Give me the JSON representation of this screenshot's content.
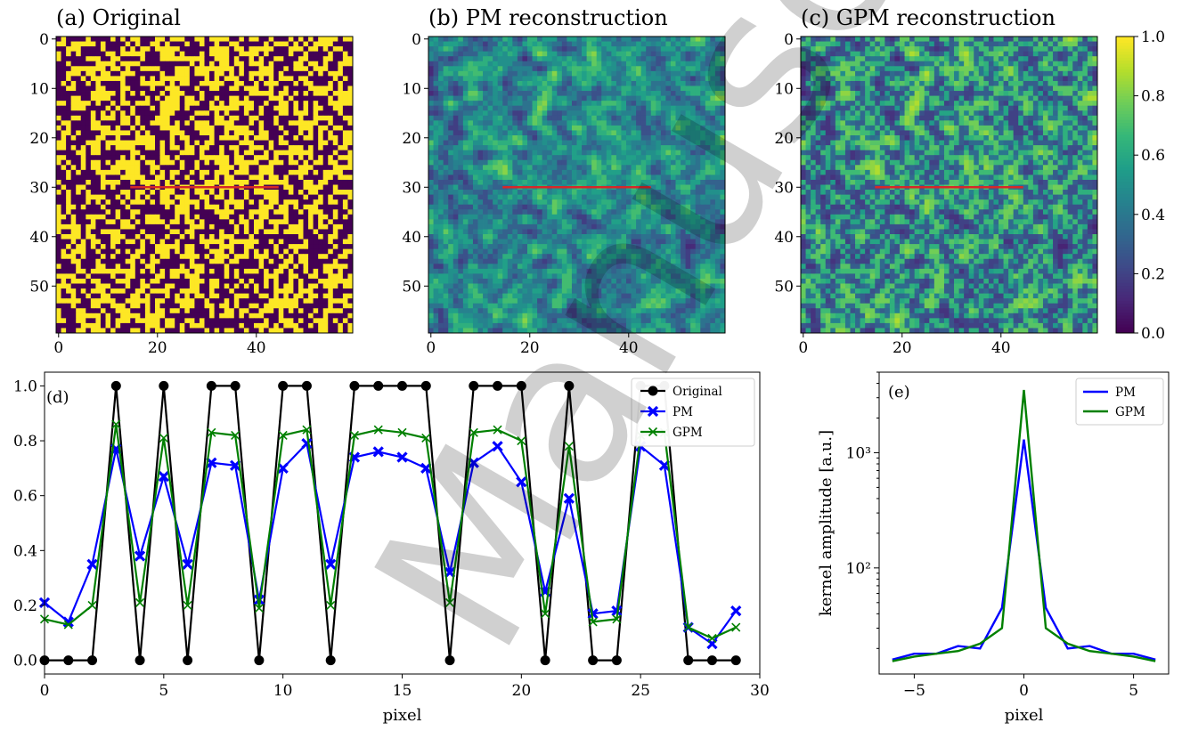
{
  "watermark": "Manuscript",
  "chart_data": [
    {
      "type": "heatmap",
      "title": "(a) Original",
      "size": [
        60,
        60
      ],
      "value_type": "binary",
      "xticks": [
        "0",
        "20",
        "40"
      ],
      "yticks": [
        "0",
        "10",
        "20",
        "30",
        "40",
        "50"
      ],
      "marker_line": {
        "row": 30,
        "from": 15,
        "to": 45,
        "color": "#d62728"
      }
    },
    {
      "type": "heatmap",
      "title": "(b) PM reconstruction",
      "size": [
        60,
        60
      ],
      "value_type": "continuous",
      "xticks": [
        "0",
        "20",
        "40"
      ],
      "yticks": [
        "0",
        "10",
        "20",
        "30",
        "40",
        "50"
      ],
      "marker_line": {
        "row": 30,
        "from": 15,
        "to": 45,
        "color": "#d62728"
      }
    },
    {
      "type": "heatmap",
      "title": "(c) GPM reconstruction",
      "size": [
        60,
        60
      ],
      "value_type": "continuous",
      "xticks": [
        "0",
        "20",
        "40"
      ],
      "yticks": [
        "0",
        "10",
        "20",
        "30",
        "40",
        "50"
      ],
      "marker_line": {
        "row": 30,
        "from": 15,
        "to": 45,
        "color": "#d62728"
      },
      "colorbar": {
        "ticks": [
          "0.0",
          "0.2",
          "0.4",
          "0.6",
          "0.8",
          "1.0"
        ],
        "range": [
          0,
          1
        ],
        "colormap": "viridis"
      }
    },
    {
      "type": "line",
      "panel_label": "(d)",
      "xlabel": "pixel",
      "ylabel": "",
      "xlim": [
        0,
        30
      ],
      "ylim": [
        -0.05,
        1.05
      ],
      "xticks": [
        "0",
        "5",
        "10",
        "15",
        "20",
        "25",
        "30"
      ],
      "yticks": [
        "0.0",
        "0.2",
        "0.4",
        "0.6",
        "0.8",
        "1.0"
      ],
      "legend_position": "top-right",
      "x": [
        0,
        1,
        2,
        3,
        4,
        5,
        6,
        7,
        8,
        9,
        10,
        11,
        12,
        13,
        14,
        15,
        16,
        17,
        18,
        19,
        20,
        21,
        22,
        23,
        24,
        25,
        26,
        27,
        28,
        29
      ],
      "series": [
        {
          "name": "Original",
          "color": "#000000",
          "marker": "circle",
          "values": [
            0,
            0,
            0,
            1,
            0,
            1,
            0,
            1,
            1,
            0,
            1,
            1,
            0,
            1,
            1,
            1,
            1,
            0,
            1,
            1,
            1,
            0,
            1,
            0,
            0,
            1,
            1,
            0,
            0,
            0
          ]
        },
        {
          "name": "PM",
          "color": "#0000ff",
          "marker": "x-bold",
          "values": [
            0.21,
            0.14,
            0.35,
            0.77,
            0.38,
            0.67,
            0.35,
            0.72,
            0.71,
            0.22,
            0.7,
            0.79,
            0.35,
            0.74,
            0.76,
            0.74,
            0.7,
            0.32,
            0.72,
            0.78,
            0.65,
            0.25,
            0.59,
            0.17,
            0.18,
            0.78,
            0.71,
            0.12,
            0.06,
            0.18
          ]
        },
        {
          "name": "GPM",
          "color": "#008000",
          "marker": "x",
          "values": [
            0.15,
            0.13,
            0.2,
            0.86,
            0.21,
            0.81,
            0.2,
            0.83,
            0.82,
            0.19,
            0.82,
            0.84,
            0.2,
            0.82,
            0.84,
            0.83,
            0.81,
            0.21,
            0.83,
            0.84,
            0.8,
            0.17,
            0.78,
            0.14,
            0.15,
            0.82,
            0.83,
            0.12,
            0.08,
            0.12
          ]
        }
      ]
    },
    {
      "type": "line",
      "panel_label": "(e)",
      "xlabel": "pixel",
      "ylabel": "kernel amplitude [a.u.]",
      "xlim": [
        -6.6,
        6.6
      ],
      "ylim": [
        12,
        5000
      ],
      "yscale": "log",
      "xticks": [
        "−5",
        "0",
        "5"
      ],
      "xtick_values": [
        -5,
        0,
        5
      ],
      "yticks": [
        "10²",
        "10³"
      ],
      "ytick_values": [
        100,
        1000
      ],
      "legend_position": "top-right",
      "x": [
        -6,
        -5,
        -4,
        -3,
        -2,
        -1,
        0,
        1,
        2,
        3,
        4,
        5,
        6
      ],
      "series": [
        {
          "name": "PM",
          "color": "#0000ff",
          "values": [
            16,
            18,
            18,
            21,
            20,
            45,
            1300,
            45,
            20,
            21,
            18,
            18,
            16
          ]
        },
        {
          "name": "GPM",
          "color": "#008000",
          "values": [
            15.5,
            17,
            18,
            19,
            22,
            30,
            3500,
            30,
            22,
            19,
            18,
            17,
            15.5
          ]
        }
      ]
    }
  ]
}
